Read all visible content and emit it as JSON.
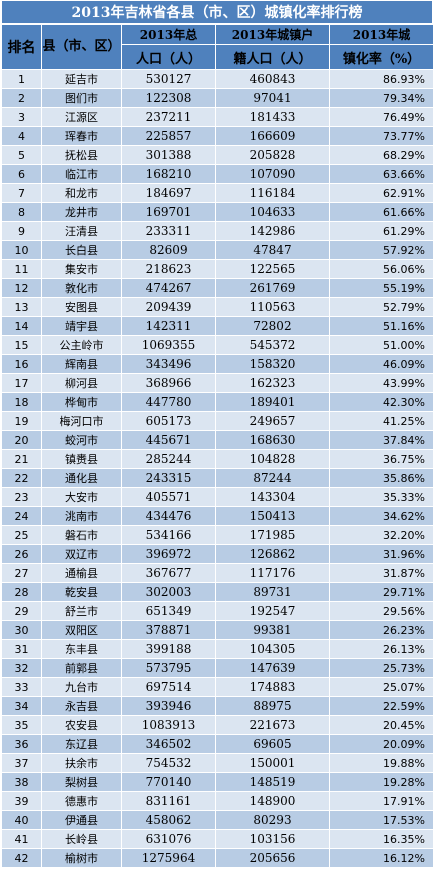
{
  "title": "2013年吉林省各县（市、区）城镇化率排行榜",
  "headers": {
    "rank": "排名",
    "county": "县（市、区）",
    "pop_line1": "2013年总",
    "pop_line2": "人口（人）",
    "urban_line1": "2013年城镇户",
    "urban_line2": "籍人口（人）",
    "rate_line1": "2013年城",
    "rate_line2": "镇化率（%）"
  },
  "rows": [
    {
      "rank": "1",
      "name": "延吉市",
      "population": "530127",
      "urban": "460843",
      "rate": "86.93%"
    },
    {
      "rank": "2",
      "name": "图们市",
      "population": "122308",
      "urban": "97041",
      "rate": "79.34%"
    },
    {
      "rank": "3",
      "name": "江源区",
      "population": "237211",
      "urban": "181433",
      "rate": "76.49%"
    },
    {
      "rank": "4",
      "name": "珲春市",
      "population": "225857",
      "urban": "166609",
      "rate": "73.77%"
    },
    {
      "rank": "5",
      "name": "抚松县",
      "population": "301388",
      "urban": "205828",
      "rate": "68.29%"
    },
    {
      "rank": "6",
      "name": "临江市",
      "population": "168210",
      "urban": "107090",
      "rate": "63.66%"
    },
    {
      "rank": "7",
      "name": "和龙市",
      "population": "184697",
      "urban": "116184",
      "rate": "62.91%"
    },
    {
      "rank": "8",
      "name": "龙井市",
      "population": "169701",
      "urban": "104633",
      "rate": "61.66%"
    },
    {
      "rank": "9",
      "name": "汪清县",
      "population": "233311",
      "urban": "142986",
      "rate": "61.29%"
    },
    {
      "rank": "10",
      "name": "长白县",
      "population": "82609",
      "urban": "47847",
      "rate": "57.92%"
    },
    {
      "rank": "11",
      "name": "集安市",
      "population": "218623",
      "urban": "122565",
      "rate": "56.06%"
    },
    {
      "rank": "12",
      "name": "敦化市",
      "population": "474267",
      "urban": "261769",
      "rate": "55.19%"
    },
    {
      "rank": "13",
      "name": "安图县",
      "population": "209439",
      "urban": "110563",
      "rate": "52.79%"
    },
    {
      "rank": "14",
      "name": "靖宇县",
      "population": "142311",
      "urban": "72802",
      "rate": "51.16%"
    },
    {
      "rank": "15",
      "name": "公主岭市",
      "population": "1069355",
      "urban": "545372",
      "rate": "51.00%"
    },
    {
      "rank": "16",
      "name": "辉南县",
      "population": "343496",
      "urban": "158320",
      "rate": "46.09%"
    },
    {
      "rank": "17",
      "name": "柳河县",
      "population": "368966",
      "urban": "162323",
      "rate": "43.99%"
    },
    {
      "rank": "18",
      "name": "桦甸市",
      "population": "447780",
      "urban": "189401",
      "rate": "42.30%"
    },
    {
      "rank": "19",
      "name": "梅河口市",
      "population": "605173",
      "urban": "249657",
      "rate": "41.25%"
    },
    {
      "rank": "20",
      "name": "蛟河市",
      "population": "445671",
      "urban": "168630",
      "rate": "37.84%"
    },
    {
      "rank": "21",
      "name": "镇赉县",
      "population": "285244",
      "urban": "104828",
      "rate": "36.75%"
    },
    {
      "rank": "22",
      "name": "通化县",
      "population": "243315",
      "urban": "87244",
      "rate": "35.86%"
    },
    {
      "rank": "23",
      "name": "大安市",
      "population": "405571",
      "urban": "143304",
      "rate": "35.33%"
    },
    {
      "rank": "24",
      "name": "洮南市",
      "population": "434476",
      "urban": "150413",
      "rate": "34.62%"
    },
    {
      "rank": "25",
      "name": "磐石市",
      "population": "534166",
      "urban": "171985",
      "rate": "32.20%"
    },
    {
      "rank": "26",
      "name": "双辽市",
      "population": "396972",
      "urban": "126862",
      "rate": "31.96%"
    },
    {
      "rank": "27",
      "name": "通榆县",
      "population": "367677",
      "urban": "117176",
      "rate": "31.87%"
    },
    {
      "rank": "28",
      "name": "乾安县",
      "population": "302003",
      "urban": "89731",
      "rate": "29.71%"
    },
    {
      "rank": "29",
      "name": "舒兰市",
      "population": "651349",
      "urban": "192547",
      "rate": "29.56%"
    },
    {
      "rank": "30",
      "name": "双阳区",
      "population": "378871",
      "urban": "99381",
      "rate": "26.23%"
    },
    {
      "rank": "31",
      "name": "东丰县",
      "population": "399188",
      "urban": "104305",
      "rate": "26.13%"
    },
    {
      "rank": "32",
      "name": "前郭县",
      "population": "573795",
      "urban": "147639",
      "rate": "25.73%"
    },
    {
      "rank": "33",
      "name": "九台市",
      "population": "697514",
      "urban": "174883",
      "rate": "25.07%"
    },
    {
      "rank": "34",
      "name": "永吉县",
      "population": "393946",
      "urban": "88975",
      "rate": "22.59%"
    },
    {
      "rank": "35",
      "name": "农安县",
      "population": "1083913",
      "urban": "221673",
      "rate": "20.45%"
    },
    {
      "rank": "36",
      "name": "东辽县",
      "population": "346502",
      "urban": "69605",
      "rate": "20.09%"
    },
    {
      "rank": "37",
      "name": "扶余市",
      "population": "754532",
      "urban": "150001",
      "rate": "19.88%"
    },
    {
      "rank": "38",
      "name": "梨树县",
      "population": "770140",
      "urban": "148519",
      "rate": "19.28%"
    },
    {
      "rank": "39",
      "name": "德惠市",
      "population": "831161",
      "urban": "148900",
      "rate": "17.91%"
    },
    {
      "rank": "40",
      "name": "伊通县",
      "population": "458062",
      "urban": "80293",
      "rate": "17.53%"
    },
    {
      "rank": "41",
      "name": "长岭县",
      "population": "631076",
      "urban": "103156",
      "rate": "16.35%"
    },
    {
      "rank": "42",
      "name": "榆树市",
      "population": "1275964",
      "urban": "205656",
      "rate": "16.12%"
    }
  ]
}
